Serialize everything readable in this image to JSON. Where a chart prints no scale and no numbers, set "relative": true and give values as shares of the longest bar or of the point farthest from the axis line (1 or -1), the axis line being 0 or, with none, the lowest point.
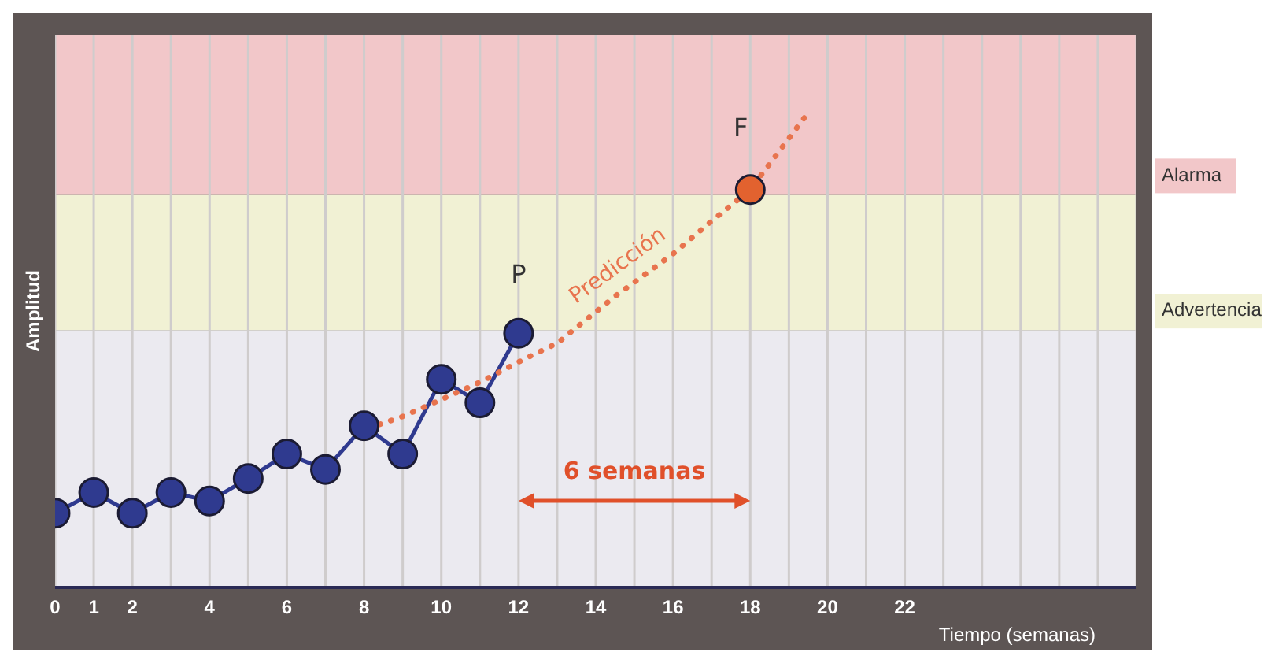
{
  "chart_data": {
    "type": "line",
    "relative": true,
    "xlabel": "Tiempo (semanas)",
    "ylabel": "Amplitud",
    "xlim": [
      0,
      28
    ],
    "xticks": [
      0,
      1,
      2,
      {
        "value": 3,
        "label": null
      },
      4,
      {
        "value": 5,
        "label": null
      },
      6,
      {
        "value": 7,
        "label": null
      },
      8,
      {
        "value": 9,
        "label": null
      },
      10,
      {
        "value": 11,
        "label": null
      },
      12,
      {
        "value": 13,
        "label": null
      },
      14,
      {
        "value": 15,
        "label": null
      },
      16,
      {
        "value": 17,
        "label": null
      },
      18,
      {
        "value": 19,
        "label": null
      },
      20,
      {
        "value": 21,
        "label": null
      },
      22,
      {
        "value": 23,
        "label": null
      },
      {
        "value": 24,
        "label": null
      },
      {
        "value": 25,
        "label": null
      },
      {
        "value": 26,
        "label": null
      },
      {
        "value": 27,
        "label": null
      },
      {
        "value": 28,
        "label": null
      }
    ],
    "grid": "x",
    "legend": false,
    "bands": [
      {
        "axis": "y",
        "from": 0,
        "to": 0.548,
        "color": "#ebeaf0"
      },
      {
        "axis": "y",
        "from": 0.548,
        "to": 0.836,
        "label": "Advertencia",
        "color": "#f1f1d4"
      },
      {
        "axis": "y",
        "from": 0.836,
        "to": 1.177,
        "label": "Alarma",
        "color": "#f2c7c9"
      }
    ],
    "series": [
      {
        "color": "#2f3a8f",
        "marker": "circle",
        "line_style": "solid",
        "x": [
          0,
          1,
          2,
          3,
          4,
          5,
          6,
          7,
          8,
          9,
          10,
          11,
          12
        ],
        "values": [
          0.158,
          0.202,
          0.158,
          0.202,
          0.184,
          0.232,
          0.284,
          0.251,
          0.344,
          0.284,
          0.443,
          0.393,
          0.541
        ]
      },
      {
        "type": "line",
        "color": "#e8744e",
        "marker": "none",
        "line_style": "dotted",
        "x": [
          8.4,
          9,
          10,
          11,
          12,
          13,
          14.5,
          16,
          17,
          18,
          19.4
        ],
        "values": [
          0.347,
          0.364,
          0.4,
          0.437,
          0.48,
          0.52,
          0.62,
          0.71,
          0.78,
          0.847,
          1
        ]
      },
      {
        "type": "scatter",
        "color": "#e2622f",
        "marker": "circle",
        "x": [
          18
        ],
        "values": [
          0.847
        ]
      }
    ],
    "annotations": [
      "P",
      "F",
      "Predicción",
      "6 semanas"
    ]
  }
}
